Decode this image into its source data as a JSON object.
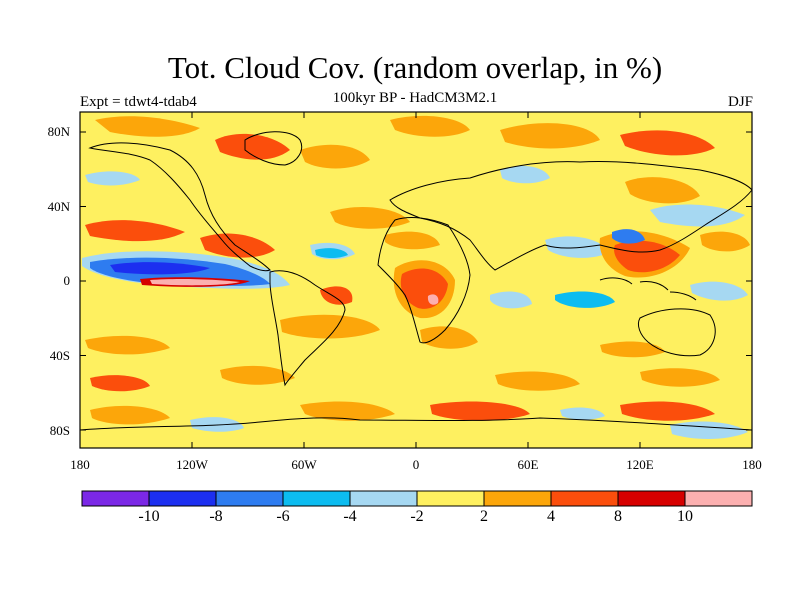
{
  "figure": {
    "title": "Tot. Cloud Cov. (random overlap, in %)",
    "subtitle": "100kyr BP - HadCM3M2.1",
    "left_label": "Expt = tdwt4-tdab4",
    "right_label": "DJF"
  },
  "axes": {
    "lat_ticks": [
      "80N",
      "40N",
      "0",
      "40S",
      "80S"
    ],
    "lon_ticks": [
      "180",
      "120W",
      "60W",
      "0",
      "60E",
      "120E",
      "180"
    ]
  },
  "legend": {
    "colors": [
      "#7b28e6",
      "#1c2ff0",
      "#2e7cf0",
      "#0cbcf0",
      "#a6d8f2",
      "#fef060",
      "#fca60a",
      "#fb4e0c",
      "#d60000",
      "#fcb0b0"
    ],
    "labels": [
      "-10",
      "-8",
      "-6",
      "-4",
      "-2",
      "2",
      "4",
      "8",
      "10"
    ]
  },
  "colors": {
    "background_field": "#fef060",
    "coastline": "#000000"
  }
}
